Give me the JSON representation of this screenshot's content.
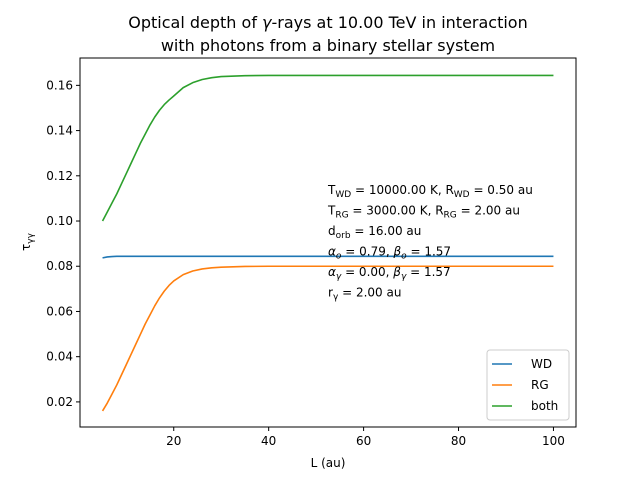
{
  "chart_data": {
    "type": "line",
    "title": {
      "line1_prefix": "Optical depth of ",
      "line1_sym": "γ",
      "line1_suffix": "-rays at 10.00 TeV in interaction",
      "line2": "with photons from a binary stellar system"
    },
    "xlabel": "L (au)",
    "ylabel": {
      "base": "τ",
      "sub": "γγ"
    },
    "xlim": [
      0.25,
      104.75
    ],
    "ylim": [
      0.0089,
      0.1721
    ],
    "x_ticks": [
      20,
      40,
      60,
      80,
      100
    ],
    "x_tick_labels": [
      "20",
      "40",
      "60",
      "80",
      "100"
    ],
    "y_ticks": [
      0.02,
      0.04,
      0.06,
      0.08,
      0.1,
      0.12,
      0.14,
      0.16
    ],
    "y_tick_labels": [
      "0.02",
      "0.04",
      "0.06",
      "0.08",
      "0.10",
      "0.12",
      "0.14",
      "0.16"
    ],
    "grid": false,
    "legend_position": "lower-right",
    "series": [
      {
        "name": "WD",
        "color": "#1f77b4",
        "x": [
          5,
          6,
          7,
          8,
          10,
          12,
          15,
          20,
          30,
          40,
          60,
          80,
          100
        ],
        "y": [
          0.0837,
          0.0841,
          0.0843,
          0.0844,
          0.0844,
          0.0844,
          0.0844,
          0.0844,
          0.0844,
          0.0844,
          0.0844,
          0.0844,
          0.0844
        ]
      },
      {
        "name": "RG",
        "color": "#ff7f0e",
        "x": [
          5,
          6,
          7,
          8,
          9,
          10,
          11,
          12,
          13,
          14,
          15,
          16,
          17,
          18,
          19,
          20,
          22,
          24,
          26,
          28,
          30,
          35,
          40,
          50,
          60,
          80,
          100
        ],
        "y": [
          0.016,
          0.0195,
          0.0235,
          0.0275,
          0.032,
          0.0365,
          0.041,
          0.0455,
          0.05,
          0.0545,
          0.0585,
          0.0625,
          0.066,
          0.069,
          0.0715,
          0.0735,
          0.0763,
          0.0779,
          0.0788,
          0.0793,
          0.0796,
          0.0799,
          0.08,
          0.08,
          0.08,
          0.08,
          0.08
        ]
      },
      {
        "name": "both",
        "color": "#2ca02c",
        "x": [
          5,
          6,
          7,
          8,
          9,
          10,
          11,
          12,
          13,
          14,
          15,
          16,
          17,
          18,
          19,
          20,
          22,
          24,
          26,
          28,
          30,
          35,
          40,
          50,
          60,
          80,
          100
        ],
        "y": [
          0.1,
          0.104,
          0.108,
          0.112,
          0.1165,
          0.121,
          0.1255,
          0.13,
          0.1345,
          0.1385,
          0.1425,
          0.146,
          0.149,
          0.1515,
          0.1535,
          0.1553,
          0.159,
          0.1612,
          0.1626,
          0.1634,
          0.1639,
          0.1643,
          0.1644,
          0.1644,
          0.1644,
          0.1644,
          0.1644
        ]
      }
    ],
    "annotation": [
      {
        "parts": [
          {
            "t": "T"
          },
          {
            "t": "WD",
            "sub": true
          },
          {
            "t": " = 10000.00 K, R"
          },
          {
            "t": "WD",
            "sub": true
          },
          {
            "t": " = 0.50 au"
          }
        ]
      },
      {
        "parts": [
          {
            "t": "T"
          },
          {
            "t": "RG",
            "sub": true
          },
          {
            "t": " = 3000.00 K, R"
          },
          {
            "t": "RG",
            "sub": true
          },
          {
            "t": " =  2.00 au"
          }
        ]
      },
      {
        "parts": [
          {
            "t": "d"
          },
          {
            "t": "orb",
            "sub": true
          },
          {
            "t": " = 16.00 au"
          }
        ]
      },
      {
        "parts": [
          {
            "t": "α",
            "italic": true
          },
          {
            "t": "o",
            "sub": true,
            "italic": true
          },
          {
            "t": " = 0.79, "
          },
          {
            "t": "β",
            "italic": true
          },
          {
            "t": "o",
            "sub": true,
            "italic": true
          },
          {
            "t": " = 1.57"
          }
        ]
      },
      {
        "parts": [
          {
            "t": "α",
            "italic": true
          },
          {
            "t": "γ",
            "sub": true,
            "italic": true
          },
          {
            "t": " = 0.00, "
          },
          {
            "t": "β",
            "italic": true
          },
          {
            "t": "γ",
            "sub": true,
            "italic": true
          },
          {
            "t": " = 1.57"
          }
        ]
      },
      {
        "parts": [
          {
            "t": "r"
          },
          {
            "t": "γ",
            "sub": true
          },
          {
            "t": " = 2.00 au"
          }
        ]
      }
    ]
  }
}
